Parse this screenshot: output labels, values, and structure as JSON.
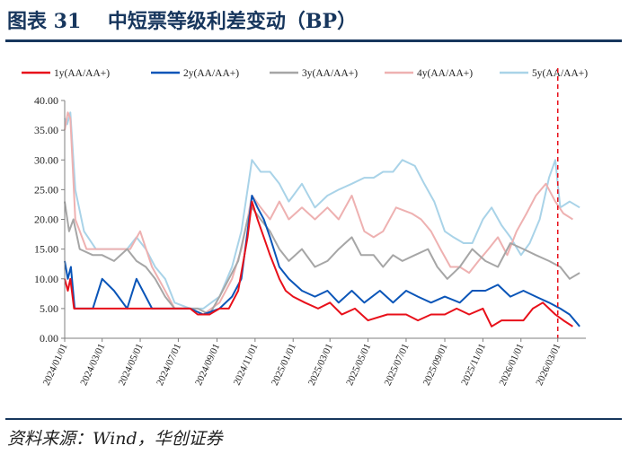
{
  "figure": {
    "title": "图表 31　 中短票等级利差变动（BP）",
    "source": "资料来源：Wind，华创证券"
  },
  "colors": {
    "heading": "#17365d",
    "s1y": "#e8101a",
    "s2y": "#0a55b8",
    "s3y": "#a6a6a6",
    "s4y": "#eeb1b1",
    "s5y": "#a9d3e8",
    "marker": "#e8101a"
  },
  "chart_data": {
    "type": "line",
    "title": "",
    "xlabel": "",
    "ylabel": "",
    "ylim": [
      0,
      40
    ],
    "yticks": [
      "0.00",
      "5.00",
      "10.00",
      "15.00",
      "20.00",
      "25.00",
      "30.00",
      "35.00",
      "40.00"
    ],
    "xlim": [
      "2024-01-01",
      "2026-04-15"
    ],
    "xticks": [
      "2024/01/01",
      "2024/03/01",
      "2024/05/01",
      "2024/07/01",
      "2024/09/01",
      "2024/11/01",
      "2025/01/01",
      "2025/03/01",
      "2025/05/01",
      "2025/07/01",
      "2025/09/01",
      "2025/11/01",
      "2026/01/01",
      "2026/03/01"
    ],
    "grid": false,
    "legend_position": "top",
    "marker_line": {
      "date": "2026-03-01",
      "style": "dashed",
      "color": "#e8101a"
    },
    "series": [
      {
        "name": "1y(AA/AA+)",
        "color": "#e8101a",
        "points": [
          [
            "2024-01-01",
            10
          ],
          [
            "2024-01-06",
            8
          ],
          [
            "2024-01-10",
            10
          ],
          [
            "2024-01-16",
            5
          ],
          [
            "2024-02-01",
            5
          ],
          [
            "2024-03-15",
            5
          ],
          [
            "2024-05-01",
            5
          ],
          [
            "2024-06-15",
            5
          ],
          [
            "2024-07-20",
            5
          ],
          [
            "2024-08-01",
            4
          ],
          [
            "2024-08-20",
            4
          ],
          [
            "2024-09-05",
            5
          ],
          [
            "2024-09-20",
            5
          ],
          [
            "2024-10-05",
            8
          ],
          [
            "2024-10-20",
            17
          ],
          [
            "2024-10-27",
            23
          ],
          [
            "2024-11-05",
            20
          ],
          [
            "2024-11-15",
            17
          ],
          [
            "2024-11-25",
            14
          ],
          [
            "2024-12-10",
            10
          ],
          [
            "2024-12-20",
            8
          ],
          [
            "2025-01-01",
            7
          ],
          [
            "2025-01-20",
            6
          ],
          [
            "2025-02-10",
            5
          ],
          [
            "2025-03-01",
            6
          ],
          [
            "2025-03-20",
            4
          ],
          [
            "2025-04-10",
            5
          ],
          [
            "2025-05-01",
            3
          ],
          [
            "2025-06-01",
            4
          ],
          [
            "2025-07-01",
            4
          ],
          [
            "2025-07-20",
            3
          ],
          [
            "2025-08-10",
            4
          ],
          [
            "2025-09-01",
            4
          ],
          [
            "2025-09-20",
            5
          ],
          [
            "2025-10-10",
            4
          ],
          [
            "2025-11-01",
            5
          ],
          [
            "2025-11-15",
            2
          ],
          [
            "2025-12-01",
            3
          ],
          [
            "2025-12-20",
            3
          ],
          [
            "2026-01-05",
            3
          ],
          [
            "2026-01-20",
            5
          ],
          [
            "2026-02-05",
            6
          ],
          [
            "2026-02-25",
            4
          ],
          [
            "2026-03-10",
            3
          ],
          [
            "2026-03-25",
            2
          ]
        ]
      },
      {
        "name": "2y(AA/AA+)",
        "color": "#0a55b8",
        "points": [
          [
            "2024-01-01",
            13
          ],
          [
            "2024-01-06",
            10
          ],
          [
            "2024-01-11",
            12
          ],
          [
            "2024-01-17",
            5
          ],
          [
            "2024-02-01",
            5
          ],
          [
            "2024-02-15",
            5
          ],
          [
            "2024-03-01",
            10
          ],
          [
            "2024-03-20",
            8
          ],
          [
            "2024-04-10",
            5
          ],
          [
            "2024-04-25",
            10
          ],
          [
            "2024-05-05",
            8
          ],
          [
            "2024-05-20",
            5
          ],
          [
            "2024-06-15",
            5
          ],
          [
            "2024-07-20",
            5
          ],
          [
            "2024-08-10",
            4
          ],
          [
            "2024-09-05",
            5
          ],
          [
            "2024-09-25",
            7
          ],
          [
            "2024-10-10",
            10
          ],
          [
            "2024-10-20",
            18
          ],
          [
            "2024-10-27",
            24
          ],
          [
            "2024-11-05",
            22
          ],
          [
            "2024-11-15",
            20
          ],
          [
            "2024-11-25",
            17
          ],
          [
            "2024-12-10",
            12
          ],
          [
            "2024-12-25",
            10
          ],
          [
            "2025-01-15",
            8
          ],
          [
            "2025-02-05",
            7
          ],
          [
            "2025-02-25",
            8
          ],
          [
            "2025-03-15",
            6
          ],
          [
            "2025-04-05",
            8
          ],
          [
            "2025-04-25",
            6
          ],
          [
            "2025-05-20",
            8
          ],
          [
            "2025-06-10",
            6
          ],
          [
            "2025-07-01",
            8
          ],
          [
            "2025-07-20",
            7
          ],
          [
            "2025-08-10",
            6
          ],
          [
            "2025-09-01",
            7
          ],
          [
            "2025-09-25",
            6
          ],
          [
            "2025-10-15",
            8
          ],
          [
            "2025-11-05",
            8
          ],
          [
            "2025-11-25",
            9
          ],
          [
            "2025-12-15",
            7
          ],
          [
            "2026-01-05",
            8
          ],
          [
            "2026-01-25",
            7
          ],
          [
            "2026-02-15",
            6
          ],
          [
            "2026-03-05",
            5
          ],
          [
            "2026-03-20",
            4
          ],
          [
            "2026-04-05",
            2
          ]
        ]
      },
      {
        "name": "3y(AA/AA+)",
        "color": "#a6a6a6",
        "points": [
          [
            "2024-01-01",
            23
          ],
          [
            "2024-01-08",
            18
          ],
          [
            "2024-01-15",
            20
          ],
          [
            "2024-01-25",
            15
          ],
          [
            "2024-02-15",
            14
          ],
          [
            "2024-03-01",
            14
          ],
          [
            "2024-03-20",
            13
          ],
          [
            "2024-04-10",
            15
          ],
          [
            "2024-04-25",
            13
          ],
          [
            "2024-05-10",
            12
          ],
          [
            "2024-05-25",
            10
          ],
          [
            "2024-06-10",
            7
          ],
          [
            "2024-06-25",
            5
          ],
          [
            "2024-07-15",
            5
          ],
          [
            "2024-08-01",
            5
          ],
          [
            "2024-08-20",
            4
          ],
          [
            "2024-09-05",
            7
          ],
          [
            "2024-09-20",
            10
          ],
          [
            "2024-10-05",
            13
          ],
          [
            "2024-10-20",
            20
          ],
          [
            "2024-10-27",
            22
          ],
          [
            "2024-11-10",
            20
          ],
          [
            "2024-11-25",
            18
          ],
          [
            "2024-12-10",
            15
          ],
          [
            "2024-12-25",
            13
          ],
          [
            "2025-01-15",
            15
          ],
          [
            "2025-02-05",
            12
          ],
          [
            "2025-02-25",
            13
          ],
          [
            "2025-03-15",
            15
          ],
          [
            "2025-04-05",
            17
          ],
          [
            "2025-04-20",
            14
          ],
          [
            "2025-05-10",
            14
          ],
          [
            "2025-05-25",
            12
          ],
          [
            "2025-06-10",
            14
          ],
          [
            "2025-06-25",
            13
          ],
          [
            "2025-07-15",
            14
          ],
          [
            "2025-08-05",
            15
          ],
          [
            "2025-08-20",
            12
          ],
          [
            "2025-09-05",
            10
          ],
          [
            "2025-09-25",
            12
          ],
          [
            "2025-10-15",
            15
          ],
          [
            "2025-11-05",
            13
          ],
          [
            "2025-11-25",
            12
          ],
          [
            "2025-12-15",
            16
          ],
          [
            "2026-01-05",
            15
          ],
          [
            "2026-01-25",
            14
          ],
          [
            "2026-02-15",
            13
          ],
          [
            "2026-03-05",
            12
          ],
          [
            "2026-03-20",
            10
          ],
          [
            "2026-04-05",
            11
          ]
        ]
      },
      {
        "name": "4y(AA/AA+)",
        "color": "#eeb1b1",
        "points": [
          [
            "2024-01-01",
            35
          ],
          [
            "2024-01-06",
            38
          ],
          [
            "2024-01-10",
            37
          ],
          [
            "2024-01-18",
            20
          ],
          [
            "2024-02-05",
            15
          ],
          [
            "2024-03-01",
            15
          ],
          [
            "2024-03-25",
            15
          ],
          [
            "2024-04-15",
            15
          ],
          [
            "2024-05-01",
            18
          ],
          [
            "2024-05-20",
            12
          ],
          [
            "2024-06-10",
            8
          ],
          [
            "2024-06-25",
            5
          ],
          [
            "2024-07-20",
            5
          ],
          [
            "2024-08-10",
            4
          ],
          [
            "2024-09-05",
            6
          ],
          [
            "2024-09-25",
            10
          ],
          [
            "2024-10-10",
            15
          ],
          [
            "2024-10-20",
            20
          ],
          [
            "2024-10-27",
            24
          ],
          [
            "2024-11-10",
            22
          ],
          [
            "2024-11-25",
            20
          ],
          [
            "2024-12-10",
            23
          ],
          [
            "2024-12-25",
            20
          ],
          [
            "2025-01-15",
            22
          ],
          [
            "2025-02-05",
            20
          ],
          [
            "2025-02-25",
            22
          ],
          [
            "2025-03-15",
            20
          ],
          [
            "2025-04-05",
            24
          ],
          [
            "2025-04-25",
            18
          ],
          [
            "2025-05-10",
            17
          ],
          [
            "2025-05-25",
            18
          ],
          [
            "2025-06-15",
            22
          ],
          [
            "2025-07-10",
            21
          ],
          [
            "2025-07-25",
            20
          ],
          [
            "2025-08-10",
            18
          ],
          [
            "2025-08-25",
            15
          ],
          [
            "2025-09-10",
            12
          ],
          [
            "2025-09-25",
            12
          ],
          [
            "2025-10-10",
            11
          ],
          [
            "2025-10-25",
            13
          ],
          [
            "2025-11-10",
            15
          ],
          [
            "2025-11-25",
            17
          ],
          [
            "2025-12-10",
            14
          ],
          [
            "2025-12-25",
            18
          ],
          [
            "2026-01-10",
            21
          ],
          [
            "2026-01-25",
            24
          ],
          [
            "2026-02-10",
            26
          ],
          [
            "2026-02-25",
            23
          ],
          [
            "2026-03-10",
            21
          ],
          [
            "2026-03-25",
            20
          ]
        ]
      },
      {
        "name": "5y(AA/AA+)",
        "color": "#a9d3e8",
        "points": [
          [
            "2024-01-01",
            37
          ],
          [
            "2024-01-05",
            36
          ],
          [
            "2024-01-10",
            38
          ],
          [
            "2024-01-18",
            25
          ],
          [
            "2024-02-01",
            18
          ],
          [
            "2024-02-20",
            15
          ],
          [
            "2024-03-15",
            15
          ],
          [
            "2024-04-10",
            15
          ],
          [
            "2024-04-25",
            17
          ],
          [
            "2024-05-10",
            15
          ],
          [
            "2024-05-25",
            12
          ],
          [
            "2024-06-10",
            10
          ],
          [
            "2024-06-25",
            6
          ],
          [
            "2024-07-20",
            5
          ],
          [
            "2024-08-10",
            5
          ],
          [
            "2024-09-05",
            7
          ],
          [
            "2024-09-25",
            12
          ],
          [
            "2024-10-10",
            18
          ],
          [
            "2024-10-20",
            25
          ],
          [
            "2024-10-27",
            30
          ],
          [
            "2024-11-10",
            28
          ],
          [
            "2024-11-25",
            28
          ],
          [
            "2024-12-10",
            26
          ],
          [
            "2024-12-25",
            23
          ],
          [
            "2025-01-15",
            26
          ],
          [
            "2025-02-05",
            22
          ],
          [
            "2025-02-25",
            24
          ],
          [
            "2025-03-15",
            25
          ],
          [
            "2025-04-05",
            26
          ],
          [
            "2025-04-25",
            27
          ],
          [
            "2025-05-10",
            27
          ],
          [
            "2025-05-25",
            28
          ],
          [
            "2025-06-10",
            28
          ],
          [
            "2025-06-25",
            30
          ],
          [
            "2025-07-15",
            29
          ],
          [
            "2025-07-30",
            26
          ],
          [
            "2025-08-15",
            23
          ],
          [
            "2025-09-01",
            18
          ],
          [
            "2025-09-15",
            17
          ],
          [
            "2025-10-01",
            16
          ],
          [
            "2025-10-15",
            16
          ],
          [
            "2025-11-01",
            20
          ],
          [
            "2025-11-15",
            22
          ],
          [
            "2025-12-01",
            19
          ],
          [
            "2025-12-15",
            17
          ],
          [
            "2026-01-01",
            14
          ],
          [
            "2026-01-15",
            16
          ],
          [
            "2026-01-31",
            20
          ],
          [
            "2026-02-15",
            27
          ],
          [
            "2026-02-25",
            30
          ],
          [
            "2026-03-05",
            22
          ],
          [
            "2026-03-20",
            23
          ],
          [
            "2026-04-05",
            22
          ]
        ]
      }
    ]
  }
}
